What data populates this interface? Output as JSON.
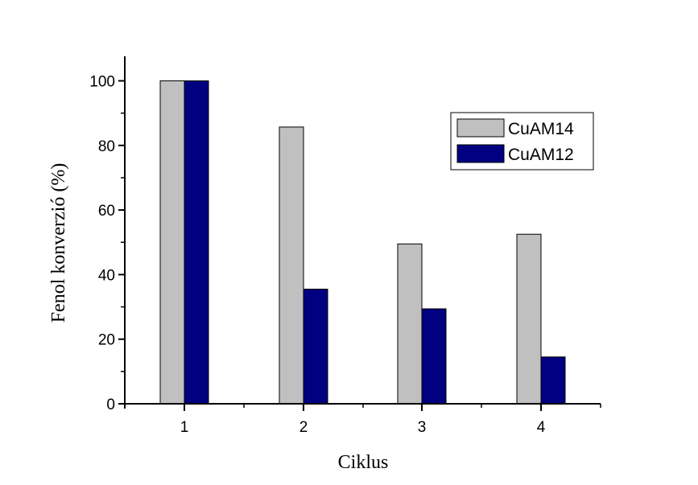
{
  "chart_data": {
    "type": "bar",
    "categories": [
      "1",
      "2",
      "3",
      "4"
    ],
    "series": [
      {
        "name": "CuAM14",
        "color": "#c0c0c0",
        "values": [
          100,
          85.7,
          49.5,
          52.5
        ]
      },
      {
        "name": "CuAM12",
        "color": "#000080",
        "values": [
          100,
          35.5,
          29.4,
          14.5
        ]
      }
    ],
    "title": "",
    "xlabel": "Ciklus",
    "ylabel": "Fenol konverzió (%)",
    "ylim": [
      0,
      110
    ],
    "yticks": [
      0,
      20,
      40,
      60,
      80,
      100
    ],
    "ytick_labels": [
      "0",
      "20",
      "40",
      "60",
      "80",
      "100"
    ],
    "legend_position": "top-right",
    "grid": false
  }
}
